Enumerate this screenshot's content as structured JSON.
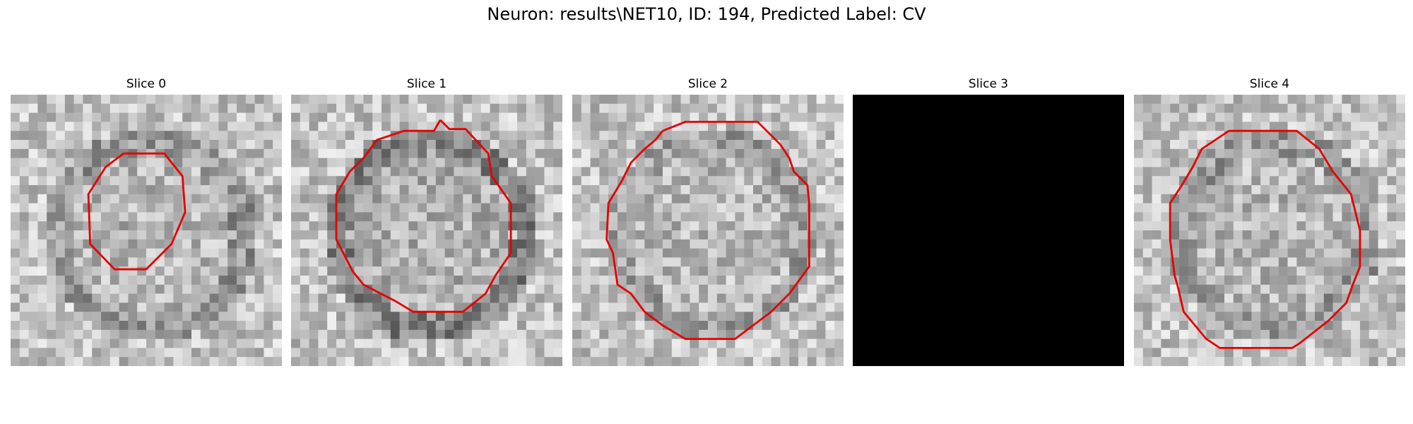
{
  "figure": {
    "title": "Neuron: results\\NET10, ID: 194, Predicted Label: CV"
  },
  "colors": {
    "contour": "#e60000",
    "background": "#ffffff"
  },
  "panels": [
    {
      "title": "Slice 0",
      "content": "grayscale-noise",
      "contour": true
    },
    {
      "title": "Slice 1",
      "content": "grayscale-noise",
      "contour": true
    },
    {
      "title": "Slice 2",
      "content": "grayscale-noise",
      "contour": true
    },
    {
      "title": "Slice 3",
      "content": "blank-black",
      "contour": false
    },
    {
      "title": "Slice 4",
      "content": "grayscale-noise",
      "contour": true
    }
  ]
}
